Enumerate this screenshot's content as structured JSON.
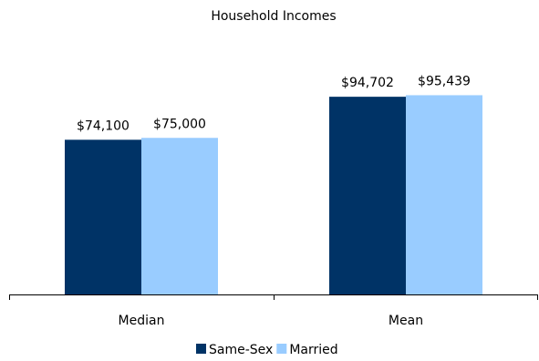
{
  "chart_data": {
    "type": "bar",
    "title": "Household Incomes",
    "categories": [
      "Median",
      "Mean"
    ],
    "series": [
      {
        "name": "Same-Sex",
        "color": "#003366",
        "values": [
          74100,
          94702
        ],
        "value_labels": [
          "$74,100",
          "$94,702"
        ]
      },
      {
        "name": "Married",
        "color": "#99ccff",
        "values": [
          75000,
          95439
        ],
        "value_labels": [
          "$75,000",
          "$95,439"
        ]
      }
    ],
    "legend": "bottom"
  }
}
